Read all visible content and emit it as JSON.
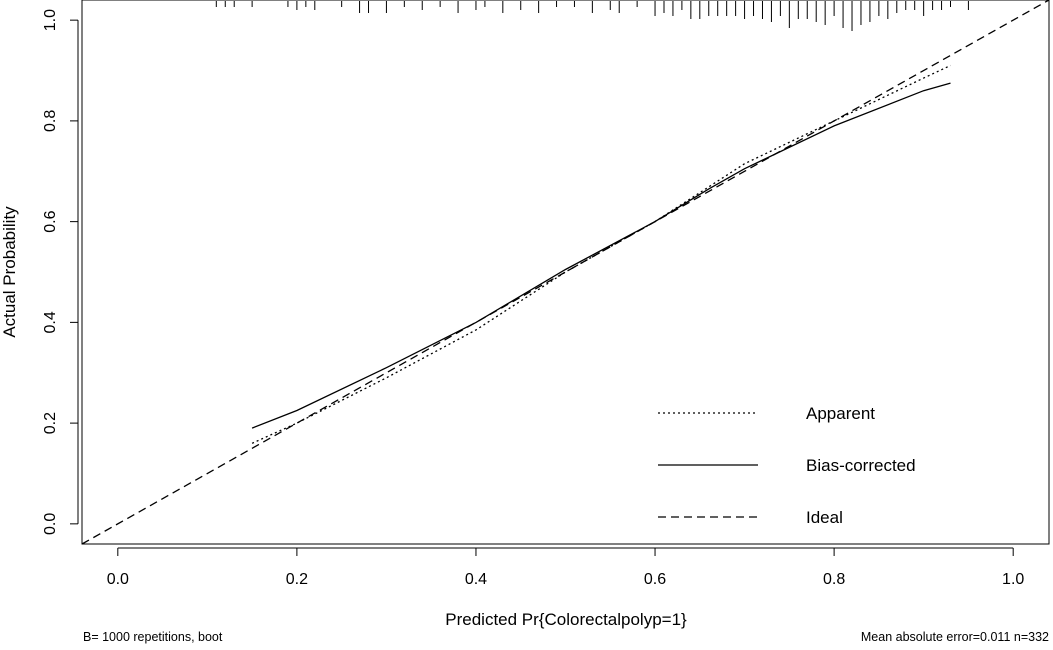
{
  "chart_data": {
    "type": "line",
    "xlabel": "Predicted Pr{Colorectalpolyp=1}",
    "ylabel": "Actual Probability",
    "xlim": [
      -0.04,
      1.04
    ],
    "ylim": [
      -0.04,
      1.04
    ],
    "x_ticks": [
      0.0,
      0.2,
      0.4,
      0.6,
      0.8,
      1.0
    ],
    "x_tick_labels": [
      "0.0",
      "0.2",
      "0.4",
      "0.6",
      "0.8",
      "1.0"
    ],
    "y_ticks": [
      0.0,
      0.2,
      0.4,
      0.6,
      0.8,
      1.0
    ],
    "y_tick_labels": [
      "0.0",
      "0.2",
      "0.4",
      "0.6",
      "0.8",
      "1.0"
    ],
    "grid": false,
    "legend_position": "bottom-right",
    "series": [
      {
        "name": "Apparent",
        "style": "dotted",
        "x": [
          0.15,
          0.2,
          0.3,
          0.4,
          0.5,
          0.6,
          0.7,
          0.8,
          0.9,
          0.93
        ],
        "y": [
          0.16,
          0.2,
          0.29,
          0.385,
          0.5,
          0.6,
          0.715,
          0.8,
          0.885,
          0.91
        ]
      },
      {
        "name": "Bias-corrected",
        "style": "solid",
        "x": [
          0.15,
          0.2,
          0.3,
          0.4,
          0.5,
          0.6,
          0.66,
          0.7,
          0.8,
          0.9,
          0.93
        ],
        "y": [
          0.19,
          0.225,
          0.31,
          0.4,
          0.505,
          0.6,
          0.665,
          0.705,
          0.79,
          0.86,
          0.875
        ]
      },
      {
        "name": "Ideal",
        "style": "dashed",
        "x": [
          -0.04,
          1.04
        ],
        "y": [
          -0.04,
          1.04
        ]
      }
    ],
    "rug": {
      "x": [
        0.11,
        0.12,
        0.13,
        0.15,
        0.19,
        0.2,
        0.21,
        0.22,
        0.25,
        0.27,
        0.28,
        0.3,
        0.32,
        0.34,
        0.36,
        0.38,
        0.4,
        0.41,
        0.43,
        0.45,
        0.47,
        0.49,
        0.51,
        0.53,
        0.55,
        0.56,
        0.58,
        0.6,
        0.61,
        0.62,
        0.63,
        0.64,
        0.65,
        0.66,
        0.67,
        0.68,
        0.69,
        0.7,
        0.71,
        0.72,
        0.73,
        0.74,
        0.75,
        0.76,
        0.77,
        0.78,
        0.79,
        0.8,
        0.81,
        0.82,
        0.83,
        0.84,
        0.85,
        0.86,
        0.87,
        0.88,
        0.89,
        0.9,
        0.91,
        0.92,
        0.93,
        0.95
      ],
      "counts": [
        1,
        1,
        1,
        1,
        1,
        2,
        1,
        2,
        1,
        3,
        3,
        3,
        1,
        2,
        1,
        3,
        2,
        1,
        3,
        2,
        3,
        1,
        1,
        3,
        2,
        3,
        1,
        4,
        3,
        4,
        2,
        5,
        5,
        4,
        4,
        4,
        4,
        5,
        4,
        5,
        6,
        4,
        8,
        5,
        5,
        6,
        7,
        4,
        8,
        9,
        7,
        6,
        4,
        5,
        3,
        2,
        2,
        4,
        2,
        2,
        1,
        2
      ]
    }
  },
  "footer": {
    "left": "B= 1000 repetitions, boot",
    "right": "Mean absolute error=0.011 n=332"
  }
}
